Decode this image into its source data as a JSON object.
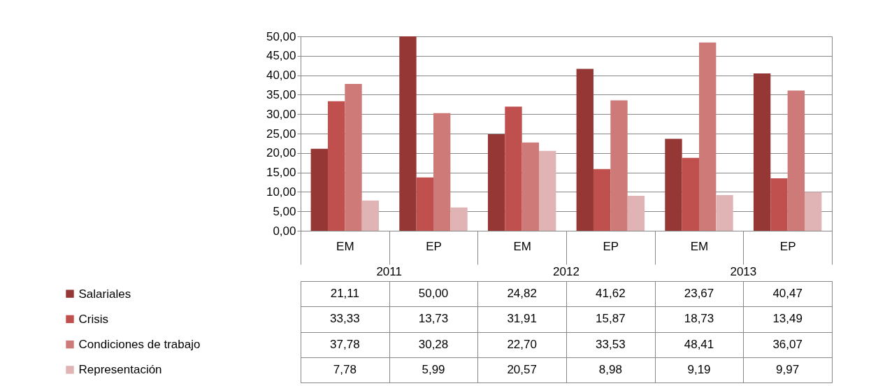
{
  "chart_data": {
    "type": "bar",
    "categories": [
      "EM",
      "EP",
      "EM",
      "EP",
      "EM",
      "EP"
    ],
    "annotations": [
      "2011",
      "2012",
      "2013"
    ],
    "series": [
      {
        "name": "Salariales",
        "color": "#953735",
        "values": [
          21.11,
          50.0,
          24.82,
          41.62,
          23.67,
          40.47
        ],
        "value_labels": [
          "21,11",
          "50,00",
          "24,82",
          "41,62",
          "23,67",
          "40,47"
        ]
      },
      {
        "name": "Crisis",
        "color": "#c0504d",
        "values": [
          33.33,
          13.73,
          31.91,
          15.87,
          18.73,
          13.49
        ],
        "value_labels": [
          "33,33",
          "13,73",
          "31,91",
          "15,87",
          "18,73",
          "13,49"
        ]
      },
      {
        "name": "Condiciones de trabajo",
        "color": "#cd7a79",
        "values": [
          37.78,
          30.28,
          22.7,
          33.53,
          48.41,
          36.07
        ],
        "value_labels": [
          "37,78",
          "30,28",
          "22,70",
          "33,53",
          "48,41",
          "36,07"
        ]
      },
      {
        "name": "Representación",
        "color": "#e0b4b4",
        "values": [
          7.78,
          5.99,
          20.57,
          8.98,
          9.19,
          9.97
        ],
        "value_labels": [
          "7,78",
          "5,99",
          "20,57",
          "8,98",
          "9,19",
          "9,97"
        ]
      }
    ],
    "ylim": [
      0,
      50
    ],
    "yticks": [
      {
        "value": 0,
        "label": "0,00"
      },
      {
        "value": 5,
        "label": "5,00"
      },
      {
        "value": 10,
        "label": "10,00"
      },
      {
        "value": 15,
        "label": "15,00"
      },
      {
        "value": 20,
        "label": "20,00"
      },
      {
        "value": 25,
        "label": "25,00"
      },
      {
        "value": 30,
        "label": "30,00"
      },
      {
        "value": 35,
        "label": "35,00"
      },
      {
        "value": 40,
        "label": "40,00"
      },
      {
        "value": 45,
        "label": "45,00"
      },
      {
        "value": 50,
        "label": "50,00"
      }
    ],
    "grid": "y",
    "legend": "bottom left"
  }
}
